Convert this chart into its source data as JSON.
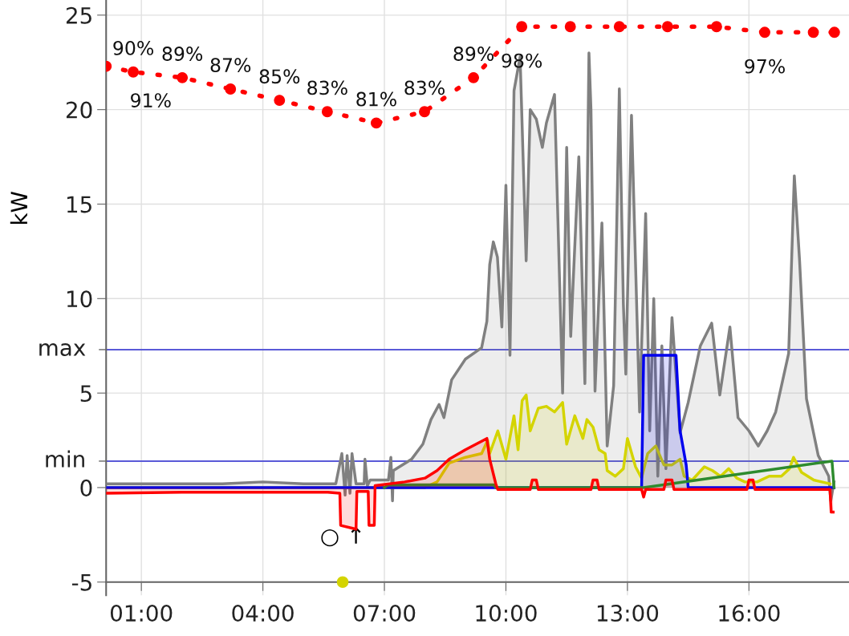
{
  "chart_data": {
    "type": "area",
    "ylabel": "kW",
    "xlim": [
      0.13,
      18.47
    ],
    "xticks": [
      {
        "value": 1,
        "label": "01:00"
      },
      {
        "value": 4,
        "label": "04:00"
      },
      {
        "value": 7,
        "label": "07:00"
      },
      {
        "value": 10,
        "label": "10:00"
      },
      {
        "value": 13,
        "label": "13:00"
      },
      {
        "value": 16,
        "label": "16:00"
      }
    ],
    "ylim": [
      -5.7,
      25.8
    ],
    "yticks": [
      -5,
      0,
      5,
      10,
      15,
      20,
      25
    ],
    "y2lim": [
      -2.3,
      102.7
    ],
    "grid": true,
    "ref_lines": [
      {
        "axis": "y",
        "value": 7.3,
        "label": "max",
        "color": "#5a5ad8"
      },
      {
        "axis": "y",
        "value": 1.4,
        "label": "min",
        "color": "#5a5ad8"
      }
    ],
    "annotations": [
      "○ ↑"
    ],
    "series": [
      {
        "color": "#808080",
        "x": [
          0.13,
          1,
          2,
          3,
          4,
          5,
          5.8,
          5.95,
          6.03,
          6.08,
          6.15,
          6.2,
          6.3,
          6.5,
          6.52,
          6.58,
          6.65,
          7.1,
          7.16,
          7.2,
          7.22,
          7.67,
          7.95,
          8.15,
          8.35,
          8.47,
          8.66,
          9.0,
          9.4,
          9.53,
          9.6,
          9.69,
          9.79,
          9.9,
          10.0,
          10.1,
          10.2,
          10.35,
          10.5,
          10.6,
          10.75,
          10.9,
          11.0,
          11.2,
          11.4,
          11.5,
          11.6,
          11.8,
          11.95,
          12.05,
          12.1,
          12.2,
          12.37,
          12.5,
          12.66,
          12.8,
          12.9,
          12.96,
          13.1,
          13.3,
          13.45,
          13.55,
          13.65,
          13.75,
          13.85,
          13.95,
          14.1,
          14.3,
          14.5,
          14.8,
          15.08,
          15.28,
          15.53,
          15.73,
          16.0,
          16.23,
          16.45,
          16.66,
          16.98,
          17.12,
          17.25,
          17.42,
          17.71,
          17.97,
          18.02,
          18.1
        ],
        "values": [
          0.2,
          0.2,
          0.2,
          0.2,
          0.3,
          0.2,
          0.2,
          1.8,
          -0.4,
          1.7,
          -0.3,
          1.8,
          0.2,
          0.2,
          1.5,
          0.1,
          0.4,
          0.4,
          1.6,
          -0.7,
          0.9,
          1.5,
          2.3,
          3.6,
          4.4,
          3.7,
          5.7,
          6.8,
          7.4,
          8.8,
          11.8,
          13.0,
          12.2,
          8.5,
          16.0,
          7.0,
          21.0,
          22.8,
          12.0,
          20.0,
          19.5,
          18.0,
          19.3,
          20.8,
          5.0,
          18.0,
          8.0,
          17.5,
          5.5,
          23.0,
          20.0,
          5.1,
          14.0,
          2.2,
          5.4,
          21.1,
          9.7,
          6.0,
          19.7,
          4.0,
          14.5,
          3.0,
          10.0,
          0.6,
          7.5,
          1.0,
          9.0,
          2.9,
          4.5,
          7.5,
          8.7,
          4.9,
          8.5,
          3.7,
          3.0,
          2.2,
          3.0,
          4.0,
          7.1,
          16.5,
          12.0,
          4.7,
          1.7,
          0.6,
          -0.7,
          0.3
        ]
      },
      {
        "color": "#d4d400",
        "x": [
          0.13,
          8.0,
          8.3,
          8.6,
          9.0,
          9.4,
          9.55,
          9.6,
          9.8,
          10.0,
          10.2,
          10.3,
          10.4,
          10.5,
          10.6,
          10.8,
          11.0,
          11.2,
          11.4,
          11.5,
          11.7,
          11.9,
          12.0,
          12.15,
          12.3,
          12.45,
          12.5,
          12.7,
          12.9,
          13.0,
          13.2,
          13.35,
          13.5,
          13.7,
          13.9,
          14.1,
          14.3,
          14.4,
          14.6,
          14.9,
          15.1,
          15.3,
          15.5,
          15.7,
          15.9,
          16.2,
          16.5,
          16.8,
          17.0,
          17.1,
          17.3,
          17.6,
          18.0
        ],
        "values": [
          0,
          0,
          0.3,
          1.3,
          1.6,
          1.8,
          2.5,
          1.8,
          3.0,
          1.5,
          3.8,
          2.0,
          4.6,
          4.9,
          3.0,
          4.2,
          4.3,
          4.0,
          4.5,
          2.3,
          3.8,
          2.6,
          3.6,
          3.2,
          2.0,
          1.8,
          0.9,
          0.6,
          1.0,
          2.6,
          1.1,
          0.5,
          1.8,
          2.2,
          1.2,
          1.2,
          1.5,
          0.6,
          0.4,
          1.1,
          0.9,
          0.6,
          1.0,
          0.5,
          0.3,
          0.3,
          0.6,
          0.6,
          1.0,
          1.6,
          0.8,
          0.4,
          0.2
        ]
      },
      {
        "color": "#0000ee",
        "x": [
          0.13,
          13.35,
          13.4,
          14.2,
          14.3,
          14.45,
          14.5,
          18.1
        ],
        "values": [
          0,
          0,
          7.0,
          7.0,
          3.0,
          1.2,
          0,
          0
        ]
      },
      {
        "type": "line",
        "color": "#2e8b2e",
        "x": [
          7.0,
          7.1,
          9.7,
          9.75,
          13.4,
          18.05,
          18.1
        ],
        "values": [
          0,
          0.15,
          0.15,
          0,
          0,
          1.4,
          0
        ]
      },
      {
        "color": "#ff0000",
        "x": [
          0.13,
          2,
          4,
          5.6,
          5.9,
          5.92,
          6.3,
          6.32,
          6.6,
          6.62,
          6.75,
          6.77,
          7.5,
          8.0,
          8.3,
          8.6,
          9.0,
          9.53,
          9.6,
          9.75,
          9.8,
          10.6,
          10.65,
          10.75,
          10.8,
          12.1,
          12.15,
          12.25,
          12.3,
          13.35,
          13.4,
          13.45,
          13.9,
          13.95,
          14.1,
          14.15,
          15.95,
          16.0,
          16.1,
          16.15,
          18.0,
          18.03,
          18.08
        ],
        "values": [
          -0.3,
          -0.25,
          -0.25,
          -0.25,
          -0.3,
          -2.0,
          -2.2,
          -0.2,
          -0.2,
          -2.0,
          -2.0,
          0.1,
          0.3,
          0.5,
          0.9,
          1.5,
          2.0,
          2.6,
          1.5,
          0.2,
          -0.1,
          -0.1,
          0.4,
          0.4,
          -0.1,
          -0.1,
          0.4,
          0.4,
          -0.1,
          -0.1,
          -0.5,
          -0.1,
          -0.1,
          0.4,
          0.4,
          -0.1,
          -0.1,
          0.4,
          0.4,
          -0.1,
          -0.1,
          -1.3,
          -1.3
        ]
      },
      {
        "type": "scatter",
        "color": "#d4d400",
        "x": [
          5.97
        ],
        "values": [
          -5
        ]
      },
      {
        "type": "line",
        "axis": "y2",
        "color": "#ff0000",
        "line_style": "dotted",
        "marker": "circle",
        "x": [
          0.13,
          0.8,
          2.01,
          3.2,
          4.41,
          5.59,
          6.8,
          7.99,
          9.2,
          10.39,
          11.59,
          12.8,
          13.99,
          15.2,
          16.39,
          17.59,
          18.11
        ],
        "values": [
          91,
          90,
          89,
          87,
          85,
          83,
          81,
          83,
          89,
          98,
          98,
          98,
          98,
          98,
          97,
          97,
          97
        ],
        "value_labels": [
          "91%",
          "90%",
          "89%",
          "87%",
          "85%",
          "83%",
          "81%",
          "83%",
          "89%",
          "98%",
          null,
          null,
          null,
          null,
          "97%",
          null,
          null
        ]
      }
    ]
  }
}
